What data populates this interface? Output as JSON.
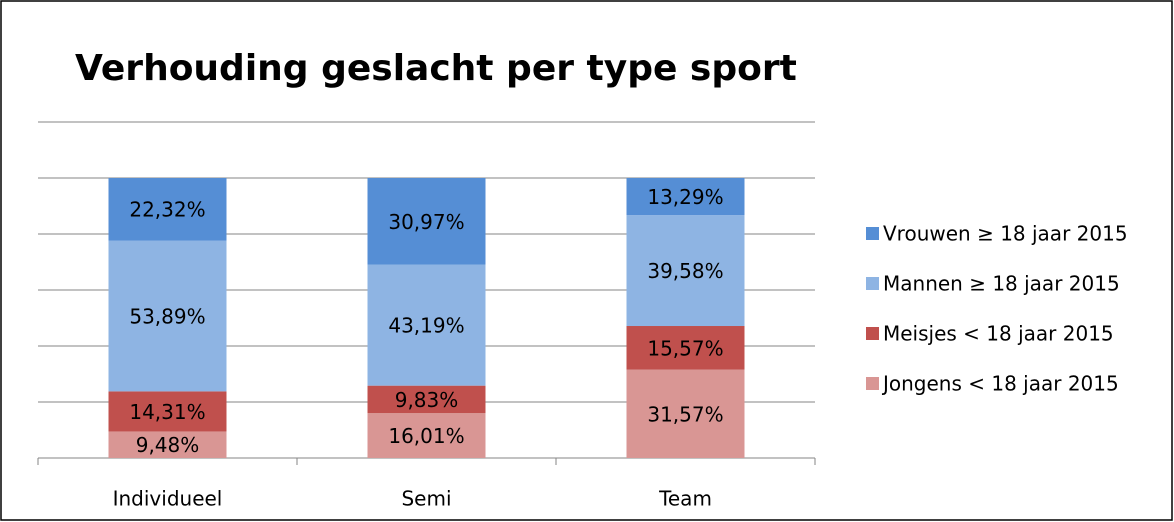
{
  "chart_data": {
    "type": "stacked_bar",
    "title": "Verhouding geslacht per type sport",
    "categories": [
      "Individueel",
      "Semi",
      "Team"
    ],
    "series": [
      {
        "name": "Jongens < 18 jaar 2015",
        "color": "#d99694",
        "values": [
          9.48,
          16.01,
          31.57
        ],
        "value_labels": [
          "9,48%",
          "16,01%",
          "31,57%"
        ]
      },
      {
        "name": "Meisjes < 18 jaar 2015",
        "color": "#c0504d",
        "values": [
          14.31,
          9.83,
          15.57
        ],
        "value_labels": [
          "14,31%",
          "9,83%",
          "15,57%"
        ]
      },
      {
        "name": "Mannen ≥ 18 jaar 2015",
        "color": "#8eb4e3",
        "values": [
          53.89,
          43.19,
          39.58
        ],
        "value_labels": [
          "53,89%",
          "43,19%",
          "39,58%"
        ]
      },
      {
        "name": "Vrouwen ≥ 18 jaar 2015",
        "color": "#558ed5",
        "values": [
          22.32,
          30.97,
          13.29
        ],
        "value_labels": [
          "22,32%",
          "30,97%",
          "13,29%"
        ]
      }
    ],
    "ylim": [
      0,
      120
    ],
    "yticks": [
      0,
      20,
      40,
      60,
      80,
      100,
      120
    ],
    "grid": true,
    "legend": "right"
  }
}
